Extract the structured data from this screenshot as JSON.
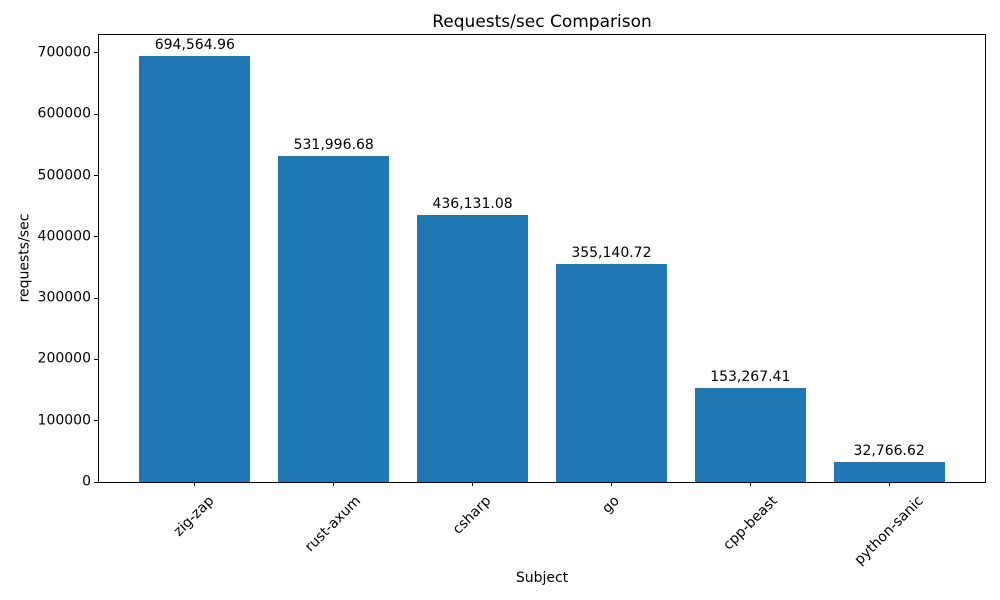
{
  "chart_data": {
    "type": "bar",
    "title": "Requests/sec Comparison",
    "xlabel": "Subject",
    "ylabel": "requests/sec",
    "categories": [
      "zig-zap",
      "rust-axum",
      "csharp",
      "go",
      "cpp-beast",
      "python-sanic"
    ],
    "values": [
      694564.96,
      531996.68,
      436131.08,
      355140.72,
      153267.41,
      32766.62
    ],
    "value_labels": [
      "694,564.96",
      "531,996.68",
      "436,131.08",
      "355,140.72",
      "153,267.41",
      "32,766.62"
    ],
    "yticks": [
      0,
      100000,
      200000,
      300000,
      400000,
      500000,
      600000,
      700000
    ],
    "ytick_labels": [
      "0",
      "100000",
      "200000",
      "300000",
      "400000",
      "500000",
      "600000",
      "700000"
    ],
    "ylim": [
      0,
      729293
    ],
    "xlim": [
      -0.69,
      5.69
    ],
    "bar_width_units": 0.8,
    "bar_color": "#1f77b4",
    "text_color": "#000000",
    "grid": false,
    "legend": null,
    "x_tick_rotation": 45
  }
}
